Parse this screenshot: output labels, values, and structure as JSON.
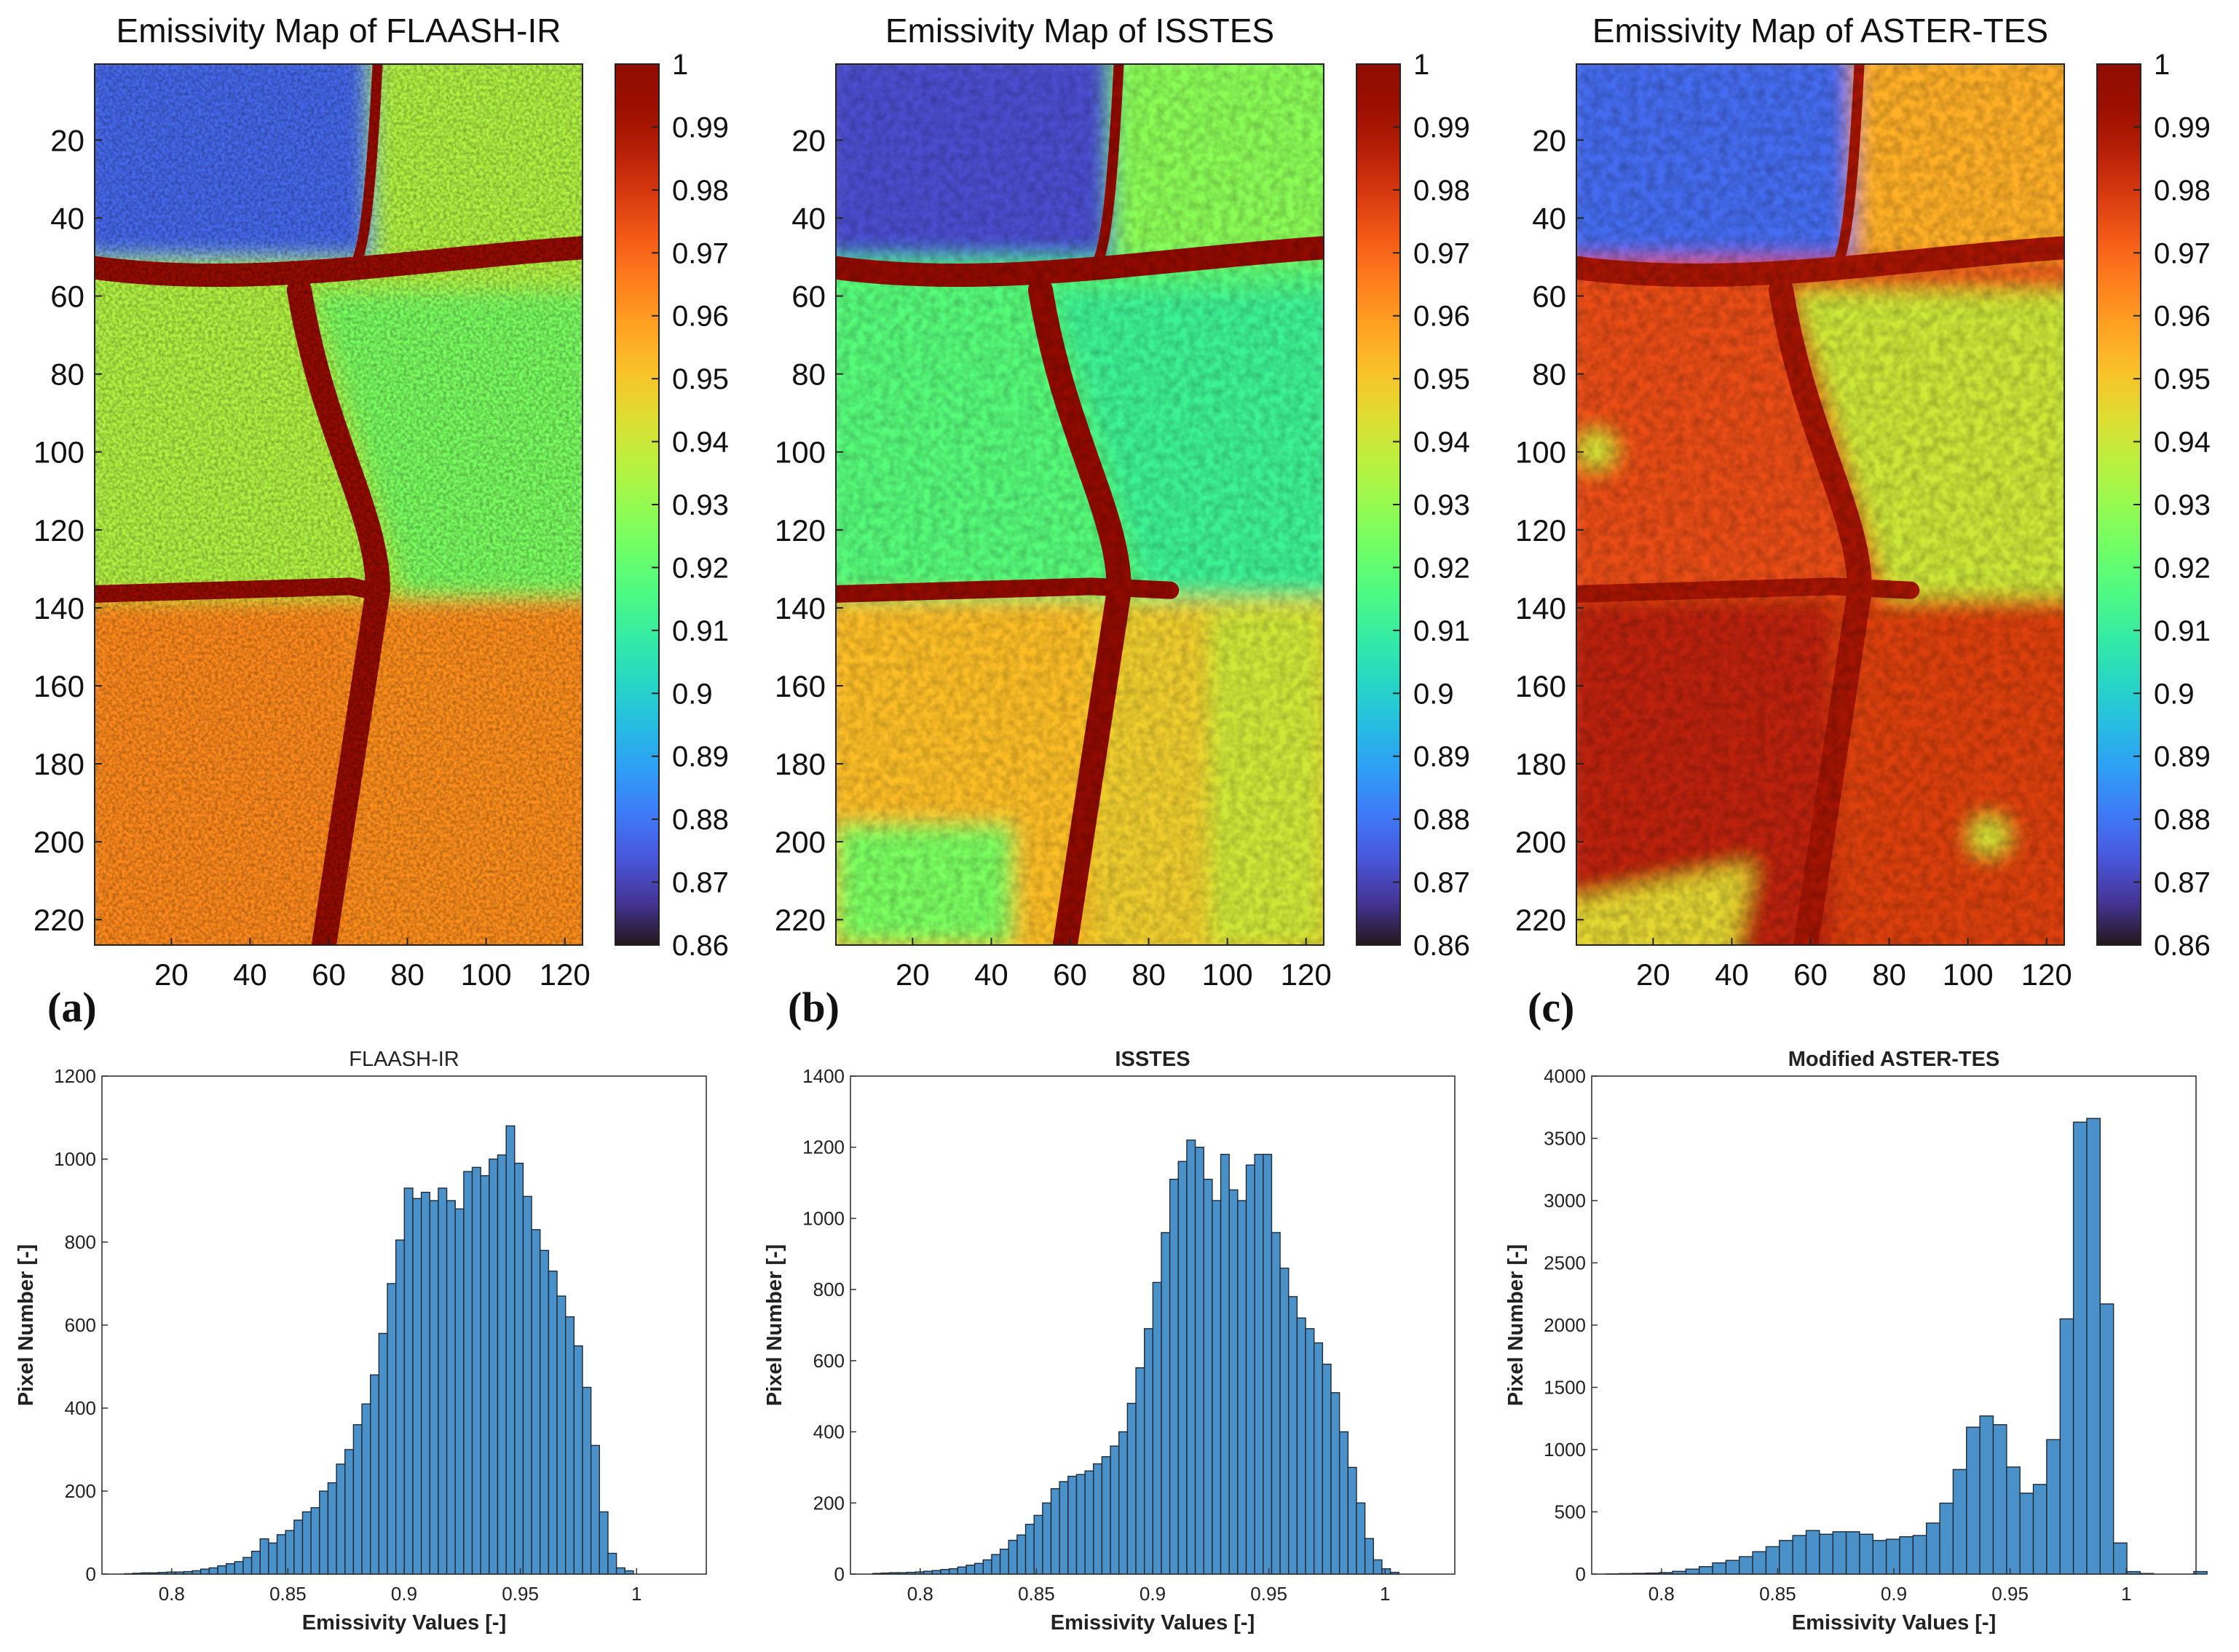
{
  "colorbar": {
    "min": 0.86,
    "max": 1,
    "tick_labels": [
      "1",
      "0.99",
      "0.98",
      "0.97",
      "0.96",
      "0.95",
      "0.94",
      "0.93",
      "0.92",
      "0.91",
      "0.9",
      "0.89",
      "0.88",
      "0.87",
      "0.86"
    ],
    "colormap": "turbo"
  },
  "panels": [
    {
      "key": "a",
      "label": "(a)",
      "title": "Emissivity Map of FLAASH-IR",
      "hist_title": "FLAASH-IR",
      "hist_title_bold": false
    },
    {
      "key": "b",
      "label": "(b)",
      "title": "Emissivity Map of ISSTES",
      "hist_title": "ISSTES",
      "hist_title_bold": true
    },
    {
      "key": "c",
      "label": "(c)",
      "title": "Emissivity Map of ASTER-TES",
      "hist_title": "Modified ASTER-TES",
      "hist_title_bold": true
    }
  ],
  "map_axes": {
    "x_ticks": [
      20,
      40,
      60,
      80,
      100,
      120
    ],
    "y_ticks": [
      20,
      40,
      60,
      80,
      100,
      120,
      140,
      160,
      180,
      200,
      220
    ],
    "x_range": [
      0.5,
      124.5
    ],
    "y_range": [
      0.5,
      226.5
    ]
  },
  "chart_data": [
    {
      "type": "bar",
      "title": "FLAASH-IR",
      "xlabel": "Emissivity Values [-]",
      "ylabel": "Pixel Number [-]",
      "xlim": [
        0.77,
        1.03
      ],
      "ylim": [
        0,
        1200
      ],
      "xticks": [
        0.8,
        0.85,
        0.9,
        0.95,
        1
      ],
      "yticks": [
        0,
        200,
        400,
        600,
        800,
        1000,
        1200
      ],
      "xtick_labels": [
        "0.8",
        "0.85",
        "0.9",
        "0.95",
        "1"
      ],
      "ytick_labels": [
        "0",
        "200",
        "400",
        "600",
        "800",
        "1000",
        "1200"
      ],
      "bin_start": 0.776,
      "bin_width": 0.00365,
      "values": [
        0,
        1,
        2,
        3,
        3,
        4,
        5,
        5,
        6,
        8,
        12,
        15,
        20,
        25,
        30,
        40,
        55,
        85,
        75,
        95,
        105,
        130,
        150,
        160,
        200,
        220,
        265,
        300,
        360,
        410,
        480,
        580,
        700,
        805,
        930,
        905,
        920,
        900,
        930,
        900,
        880,
        970,
        980,
        960,
        1000,
        1010,
        1080,
        990,
        910,
        830,
        780,
        730,
        670,
        620,
        550,
        450,
        310,
        150,
        50,
        15,
        8
      ]
    },
    {
      "type": "bar",
      "title": "ISSTES",
      "xlabel": "Emissivity Values [-]",
      "ylabel": "Pixel Number [-]",
      "xlim": [
        0.77,
        1.03
      ],
      "ylim": [
        0,
        1400
      ],
      "xticks": [
        0.8,
        0.85,
        0.9,
        0.95,
        1
      ],
      "yticks": [
        0,
        200,
        400,
        600,
        800,
        1000,
        1200,
        1400
      ],
      "xtick_labels": [
        "0.8",
        "0.85",
        "0.9",
        "0.95",
        "1"
      ],
      "ytick_labels": [
        "0",
        "200",
        "400",
        "600",
        "800",
        "1000",
        "1200",
        "1400"
      ],
      "bin_start": 0.776,
      "bin_width": 0.00365,
      "values": [
        0,
        2,
        3,
        4,
        4,
        5,
        6,
        8,
        10,
        13,
        15,
        20,
        25,
        30,
        40,
        55,
        70,
        95,
        110,
        140,
        165,
        200,
        240,
        260,
        275,
        280,
        290,
        310,
        330,
        360,
        400,
        480,
        580,
        690,
        820,
        960,
        1110,
        1160,
        1220,
        1200,
        1110,
        1050,
        1180,
        1080,
        1050,
        1150,
        1180,
        1180,
        960,
        860,
        780,
        720,
        690,
        650,
        590,
        510,
        400,
        300,
        200,
        100,
        40,
        15,
        5
      ]
    },
    {
      "type": "bar",
      "title": "Modified ASTER-TES",
      "xlabel": "Emissivity Values [-]",
      "ylabel": "Pixel Number [-]",
      "xlim": [
        0.77,
        1.03
      ],
      "ylim": [
        0,
        4000
      ],
      "xticks": [
        0.8,
        0.85,
        0.9,
        0.95,
        1
      ],
      "yticks": [
        0,
        500,
        1000,
        1500,
        2000,
        2500,
        3000,
        3500,
        4000
      ],
      "xtick_labels": [
        "0.8",
        "0.85",
        "0.9",
        "0.95",
        "1"
      ],
      "ytick_labels": [
        "0",
        "500",
        "1000",
        "1500",
        "2000",
        "2500",
        "3000",
        "3500",
        "4000"
      ],
      "bin_start": 0.776,
      "bin_width": 0.00575,
      "values": [
        2,
        4,
        6,
        8,
        12,
        22,
        40,
        60,
        90,
        110,
        140,
        180,
        220,
        270,
        310,
        350,
        320,
        340,
        340,
        320,
        270,
        280,
        300,
        310,
        410,
        570,
        840,
        1180,
        1270,
        1200,
        860,
        650,
        720,
        1080,
        2050,
        3630,
        3660,
        2170,
        250,
        20,
        5,
        0,
        0,
        0,
        20
      ]
    }
  ]
}
